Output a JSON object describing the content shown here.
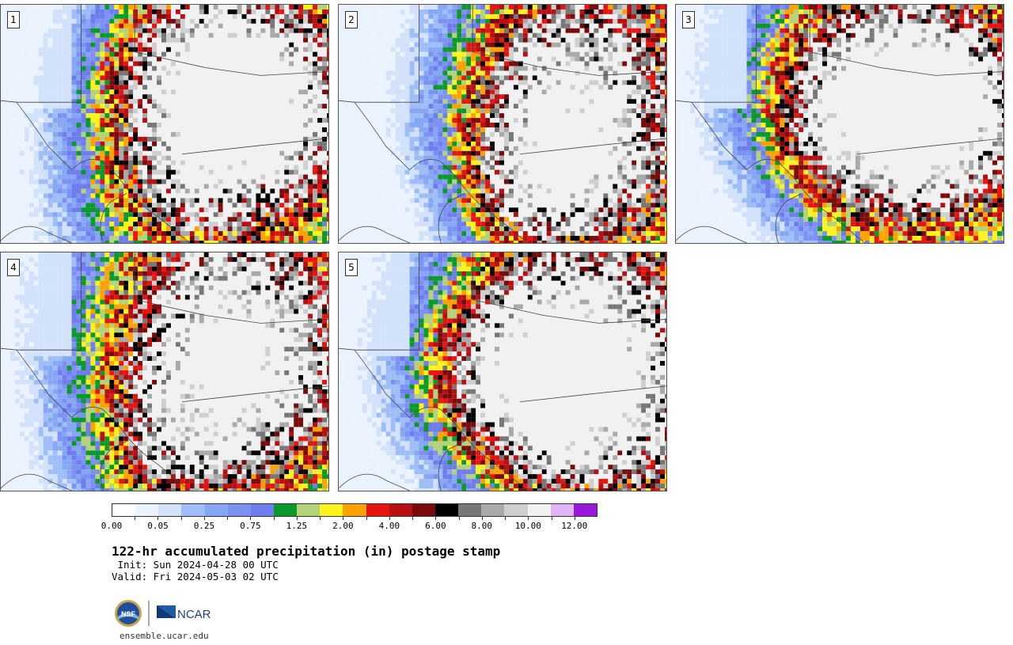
{
  "panels": [
    {
      "label": "1"
    },
    {
      "label": "2"
    },
    {
      "label": "3"
    },
    {
      "label": "4"
    },
    {
      "label": "5"
    }
  ],
  "colorbar": {
    "colors": [
      "#ffffff",
      "#eaf3ff",
      "#d2e2fb",
      "#9fbdf6",
      "#86a7f3",
      "#7c92f2",
      "#6f7cee",
      "#0b9a2a",
      "#b3d27a",
      "#fff31c",
      "#ffa200",
      "#e8140f",
      "#b90f12",
      "#7a0b0b",
      "#000000",
      "#777777",
      "#a9a9a9",
      "#cfcfcf",
      "#f1f1f1",
      "#e1b4f3",
      "#9a17df"
    ],
    "labels": [
      "0.00",
      "0.05",
      "0.25",
      "0.75",
      "1.25",
      "2.00",
      "4.00",
      "6.00",
      "8.00",
      "10.00",
      "12.00"
    ]
  },
  "title": "122-hr accumulated precipitation (in) postage stamp",
  "init": " Init: Sun 2024-04-28 00 UTC",
  "valid": "Valid: Fri 2024-05-03 02 UTC",
  "logos": {
    "nsf": "NSF",
    "ncar": "NCAR"
  },
  "url": "ensemble.ucar.edu"
}
